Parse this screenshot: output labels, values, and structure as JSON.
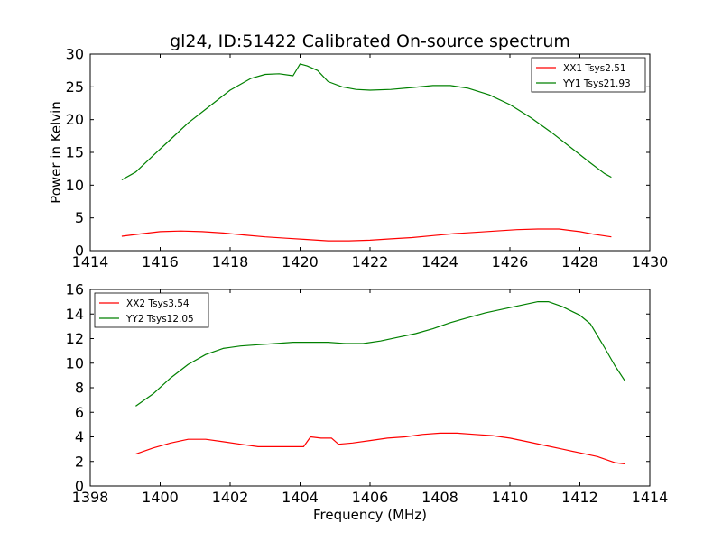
{
  "figure_title": "gl24, ID:51422 Calibrated On-source spectrum",
  "chart_data": [
    {
      "type": "line",
      "title": "gl24, ID:51422 Calibrated On-source spectrum",
      "xlabel": "",
      "ylabel": "Power in Kelvin",
      "xlim": [
        1414,
        1430
      ],
      "ylim": [
        0,
        30
      ],
      "xticks": [
        1414,
        1416,
        1418,
        1420,
        1422,
        1424,
        1426,
        1428,
        1430
      ],
      "xtick_labels": [
        "1414",
        "1416",
        "1418",
        "1420",
        "1422",
        "1424",
        "1426",
        "1428",
        "1430"
      ],
      "yticks": [
        0,
        5,
        10,
        15,
        20,
        25,
        30
      ],
      "ytick_labels": [
        "0",
        "5",
        "10",
        "15",
        "20",
        "25",
        "30"
      ],
      "grid": false,
      "legend_position": "top-right",
      "series": [
        {
          "name": "XX1 Tsys2.51",
          "color": "#ff0000",
          "points": [
            [
              1414.9,
              2.2
            ],
            [
              1415.5,
              2.6
            ],
            [
              1416.0,
              2.9
            ],
            [
              1416.6,
              3.0
            ],
            [
              1417.2,
              2.9
            ],
            [
              1417.8,
              2.7
            ],
            [
              1418.4,
              2.4
            ],
            [
              1419.0,
              2.1
            ],
            [
              1419.6,
              1.9
            ],
            [
              1420.2,
              1.7
            ],
            [
              1420.8,
              1.5
            ],
            [
              1421.4,
              1.5
            ],
            [
              1422.0,
              1.6
            ],
            [
              1422.6,
              1.8
            ],
            [
              1423.2,
              2.0
            ],
            [
              1423.8,
              2.3
            ],
            [
              1424.4,
              2.6
            ],
            [
              1425.0,
              2.8
            ],
            [
              1425.6,
              3.0
            ],
            [
              1426.2,
              3.2
            ],
            [
              1426.8,
              3.3
            ],
            [
              1427.4,
              3.3
            ],
            [
              1428.0,
              2.9
            ],
            [
              1428.4,
              2.5
            ],
            [
              1428.9,
              2.1
            ]
          ]
        },
        {
          "name": "YY1 Tsys21.93",
          "color": "#008000",
          "points": [
            [
              1414.9,
              10.8
            ],
            [
              1415.3,
              12.0
            ],
            [
              1415.8,
              14.5
            ],
            [
              1416.3,
              17.0
            ],
            [
              1416.8,
              19.5
            ],
            [
              1417.4,
              22.0
            ],
            [
              1418.0,
              24.5
            ],
            [
              1418.6,
              26.3
            ],
            [
              1419.0,
              26.9
            ],
            [
              1419.4,
              27.0
            ],
            [
              1419.8,
              26.7
            ],
            [
              1420.0,
              28.5
            ],
            [
              1420.2,
              28.2
            ],
            [
              1420.5,
              27.5
            ],
            [
              1420.8,
              25.8
            ],
            [
              1421.2,
              25.0
            ],
            [
              1421.6,
              24.6
            ],
            [
              1422.0,
              24.5
            ],
            [
              1422.6,
              24.6
            ],
            [
              1423.2,
              24.9
            ],
            [
              1423.8,
              25.2
            ],
            [
              1424.3,
              25.2
            ],
            [
              1424.8,
              24.8
            ],
            [
              1425.4,
              23.8
            ],
            [
              1426.0,
              22.3
            ],
            [
              1426.6,
              20.3
            ],
            [
              1427.2,
              18.0
            ],
            [
              1427.8,
              15.5
            ],
            [
              1428.3,
              13.4
            ],
            [
              1428.7,
              11.8
            ],
            [
              1428.9,
              11.2
            ]
          ]
        }
      ]
    },
    {
      "type": "line",
      "title": "",
      "xlabel": "Frequency (MHz)",
      "ylabel": "",
      "xlim": [
        1398,
        1414
      ],
      "ylim": [
        0,
        16
      ],
      "xticks": [
        1398,
        1400,
        1402,
        1404,
        1406,
        1408,
        1410,
        1412,
        1414
      ],
      "xtick_labels": [
        "1398",
        "1400",
        "1402",
        "1404",
        "1406",
        "1408",
        "1410",
        "1412",
        "1414"
      ],
      "yticks": [
        0,
        2,
        4,
        6,
        8,
        10,
        12,
        14,
        16
      ],
      "ytick_labels": [
        "0",
        "2",
        "4",
        "6",
        "8",
        "10",
        "12",
        "14",
        "16"
      ],
      "grid": false,
      "legend_position": "top-left",
      "series": [
        {
          "name": "XX2 Tsys3.54",
          "color": "#ff0000",
          "points": [
            [
              1399.3,
              2.6
            ],
            [
              1399.8,
              3.1
            ],
            [
              1400.3,
              3.5
            ],
            [
              1400.8,
              3.8
            ],
            [
              1401.3,
              3.8
            ],
            [
              1401.8,
              3.6
            ],
            [
              1402.3,
              3.4
            ],
            [
              1402.8,
              3.2
            ],
            [
              1403.3,
              3.2
            ],
            [
              1403.8,
              3.2
            ],
            [
              1404.1,
              3.2
            ],
            [
              1404.3,
              4.0
            ],
            [
              1404.6,
              3.9
            ],
            [
              1404.9,
              3.9
            ],
            [
              1405.1,
              3.4
            ],
            [
              1405.5,
              3.5
            ],
            [
              1406.0,
              3.7
            ],
            [
              1406.5,
              3.9
            ],
            [
              1407.0,
              4.0
            ],
            [
              1407.5,
              4.2
            ],
            [
              1408.0,
              4.3
            ],
            [
              1408.5,
              4.3
            ],
            [
              1409.0,
              4.2
            ],
            [
              1409.5,
              4.1
            ],
            [
              1410.0,
              3.9
            ],
            [
              1410.5,
              3.6
            ],
            [
              1411.0,
              3.3
            ],
            [
              1411.5,
              3.0
            ],
            [
              1412.0,
              2.7
            ],
            [
              1412.5,
              2.4
            ],
            [
              1413.0,
              1.9
            ],
            [
              1413.3,
              1.8
            ]
          ]
        },
        {
          "name": "YY2 Tsys12.05",
          "color": "#008000",
          "points": [
            [
              1399.3,
              6.5
            ],
            [
              1399.8,
              7.5
            ],
            [
              1400.3,
              8.8
            ],
            [
              1400.8,
              9.9
            ],
            [
              1401.3,
              10.7
            ],
            [
              1401.8,
              11.2
            ],
            [
              1402.3,
              11.4
            ],
            [
              1402.8,
              11.5
            ],
            [
              1403.3,
              11.6
            ],
            [
              1403.8,
              11.7
            ],
            [
              1404.3,
              11.7
            ],
            [
              1404.8,
              11.7
            ],
            [
              1405.3,
              11.6
            ],
            [
              1405.8,
              11.6
            ],
            [
              1406.3,
              11.8
            ],
            [
              1406.8,
              12.1
            ],
            [
              1407.3,
              12.4
            ],
            [
              1407.8,
              12.8
            ],
            [
              1408.3,
              13.3
            ],
            [
              1408.8,
              13.7
            ],
            [
              1409.3,
              14.1
            ],
            [
              1409.8,
              14.4
            ],
            [
              1410.3,
              14.7
            ],
            [
              1410.8,
              15.0
            ],
            [
              1411.1,
              15.0
            ],
            [
              1411.5,
              14.6
            ],
            [
              1412.0,
              13.9
            ],
            [
              1412.3,
              13.2
            ],
            [
              1412.7,
              11.3
            ],
            [
              1413.0,
              9.8
            ],
            [
              1413.3,
              8.5
            ]
          ]
        }
      ]
    }
  ]
}
